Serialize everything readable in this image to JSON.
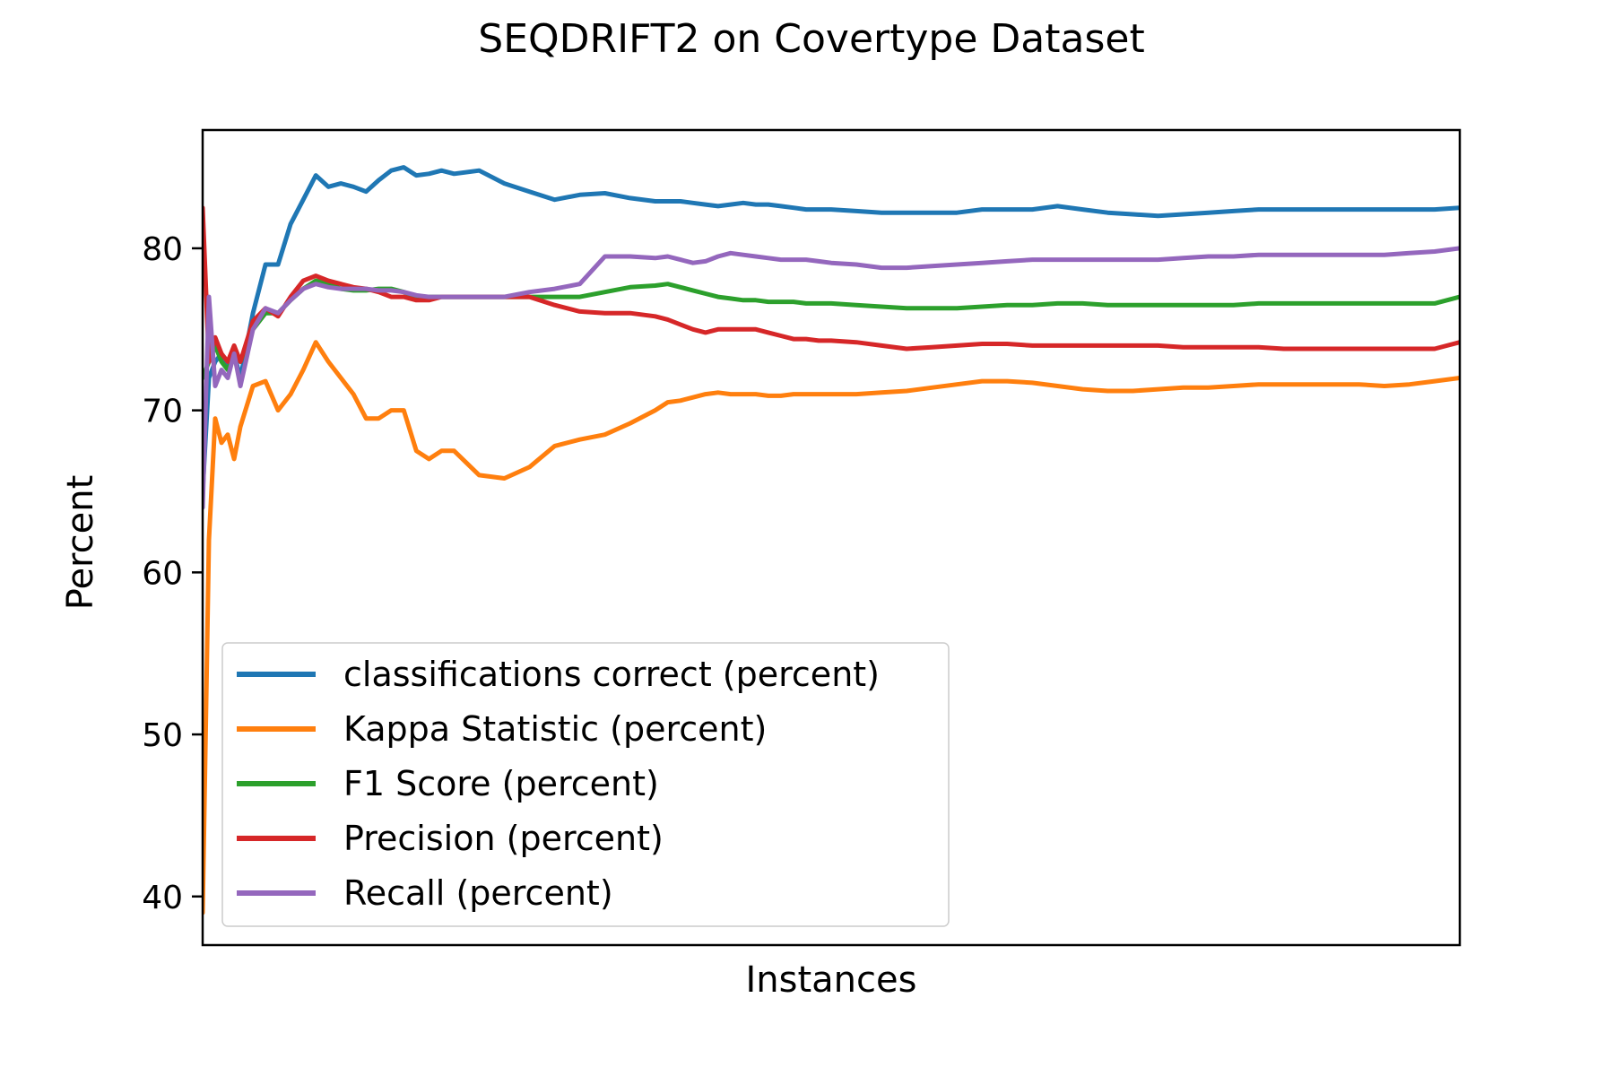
{
  "chart_data": {
    "type": "line",
    "title": "SEQDRIFT2 on Covertype Dataset",
    "xlabel": "Instances",
    "ylabel": "Percent",
    "xlim": [
      0,
      100
    ],
    "ylim": [
      37,
      87.3
    ],
    "yticks": [
      40,
      50,
      60,
      70,
      80
    ],
    "xticks": [],
    "grid": false,
    "legend": "lower-left",
    "x": [
      0,
      0.5,
      1,
      1.5,
      2,
      2.5,
      3,
      4,
      5,
      6,
      7,
      8,
      9,
      10,
      11,
      12,
      13,
      14,
      15,
      16,
      17,
      18,
      19,
      20,
      22,
      24,
      26,
      28,
      30,
      32,
      34,
      36,
      37,
      38,
      39,
      40,
      41,
      42,
      43,
      44,
      45,
      46,
      47,
      48,
      49,
      50,
      52,
      54,
      56,
      58,
      60,
      62,
      64,
      66,
      68,
      70,
      72,
      74,
      76,
      78,
      80,
      82,
      84,
      86,
      88,
      90,
      92,
      94,
      96,
      98,
      100
    ],
    "series": [
      {
        "name": "classifications correct (percent)",
        "color": "#1f77b4",
        "values": [
          65.0,
          72.0,
          73.0,
          73.5,
          72.5,
          73.5,
          72.0,
          76.0,
          79.0,
          79.0,
          81.5,
          83.0,
          84.5,
          83.8,
          84.0,
          83.8,
          83.5,
          84.2,
          84.8,
          85.0,
          84.5,
          84.6,
          84.8,
          84.6,
          84.8,
          84.0,
          83.5,
          83.0,
          83.3,
          83.4,
          83.1,
          82.9,
          82.9,
          82.9,
          82.8,
          82.7,
          82.6,
          82.7,
          82.8,
          82.7,
          82.7,
          82.6,
          82.5,
          82.4,
          82.4,
          82.4,
          82.3,
          82.2,
          82.2,
          82.2,
          82.2,
          82.4,
          82.4,
          82.4,
          82.6,
          82.4,
          82.2,
          82.1,
          82.0,
          82.1,
          82.2,
          82.3,
          82.4,
          82.4,
          82.4,
          82.4,
          82.4,
          82.4,
          82.4,
          82.4,
          82.5
        ]
      },
      {
        "name": "Kappa Statistic (percent)",
        "color": "#ff7f0e",
        "values": [
          39.0,
          62.0,
          69.5,
          68.0,
          68.5,
          67.0,
          69.0,
          71.5,
          71.8,
          70.0,
          71.0,
          72.5,
          74.2,
          73.0,
          72.0,
          71.0,
          69.5,
          69.5,
          70.0,
          70.0,
          67.5,
          67.0,
          67.5,
          67.5,
          66.0,
          65.8,
          66.5,
          67.8,
          68.2,
          68.5,
          69.2,
          70.0,
          70.5,
          70.6,
          70.8,
          71.0,
          71.1,
          71.0,
          71.0,
          71.0,
          70.9,
          70.9,
          71.0,
          71.0,
          71.0,
          71.0,
          71.0,
          71.1,
          71.2,
          71.4,
          71.6,
          71.8,
          71.8,
          71.7,
          71.5,
          71.3,
          71.2,
          71.2,
          71.3,
          71.4,
          71.4,
          71.5,
          71.6,
          71.6,
          71.6,
          71.6,
          71.6,
          71.5,
          71.6,
          71.8,
          72.0
        ]
      },
      {
        "name": "F1 Score (percent)",
        "color": "#2ca02c",
        "values": [
          72.0,
          73.0,
          74.0,
          73.0,
          72.5,
          73.5,
          73.0,
          75.0,
          76.0,
          76.0,
          76.8,
          77.5,
          78.0,
          77.8,
          77.5,
          77.4,
          77.4,
          77.5,
          77.5,
          77.3,
          77.0,
          77.0,
          77.0,
          77.0,
          77.0,
          77.0,
          77.0,
          77.0,
          77.0,
          77.3,
          77.6,
          77.7,
          77.8,
          77.6,
          77.4,
          77.2,
          77.0,
          76.9,
          76.8,
          76.8,
          76.7,
          76.7,
          76.7,
          76.6,
          76.6,
          76.6,
          76.5,
          76.4,
          76.3,
          76.3,
          76.3,
          76.4,
          76.5,
          76.5,
          76.6,
          76.6,
          76.5,
          76.5,
          76.5,
          76.5,
          76.5,
          76.5,
          76.6,
          76.6,
          76.6,
          76.6,
          76.6,
          76.6,
          76.6,
          76.6,
          77.0
        ]
      },
      {
        "name": "Precision (percent)",
        "color": "#d62728",
        "values": [
          82.5,
          73.0,
          74.5,
          73.5,
          73.0,
          74.0,
          73.0,
          75.5,
          76.3,
          75.8,
          77.0,
          78.0,
          78.3,
          78.0,
          77.8,
          77.6,
          77.5,
          77.3,
          77.0,
          77.0,
          76.8,
          76.8,
          77.0,
          77.0,
          77.0,
          77.0,
          77.0,
          76.5,
          76.1,
          76.0,
          76.0,
          75.8,
          75.6,
          75.3,
          75.0,
          74.8,
          75.0,
          75.0,
          75.0,
          75.0,
          74.8,
          74.6,
          74.4,
          74.4,
          74.3,
          74.3,
          74.2,
          74.0,
          73.8,
          73.9,
          74.0,
          74.1,
          74.1,
          74.0,
          74.0,
          74.0,
          74.0,
          74.0,
          74.0,
          73.9,
          73.9,
          73.9,
          73.9,
          73.8,
          73.8,
          73.8,
          73.8,
          73.8,
          73.8,
          73.8,
          74.2
        ]
      },
      {
        "name": "Recall (percent)",
        "color": "#9467bd",
        "values": [
          64.0,
          77.0,
          71.5,
          72.5,
          72.0,
          73.5,
          71.5,
          75.0,
          76.3,
          76.0,
          76.8,
          77.5,
          77.8,
          77.6,
          77.5,
          77.5,
          77.5,
          77.4,
          77.4,
          77.3,
          77.1,
          77.0,
          77.0,
          77.0,
          77.0,
          77.0,
          77.3,
          77.5,
          77.8,
          79.5,
          79.5,
          79.4,
          79.5,
          79.3,
          79.1,
          79.2,
          79.5,
          79.7,
          79.6,
          79.5,
          79.4,
          79.3,
          79.3,
          79.3,
          79.2,
          79.1,
          79.0,
          78.8,
          78.8,
          78.9,
          79.0,
          79.1,
          79.2,
          79.3,
          79.3,
          79.3,
          79.3,
          79.3,
          79.3,
          79.4,
          79.5,
          79.5,
          79.6,
          79.6,
          79.6,
          79.6,
          79.6,
          79.6,
          79.7,
          79.8,
          80.0
        ]
      }
    ]
  }
}
